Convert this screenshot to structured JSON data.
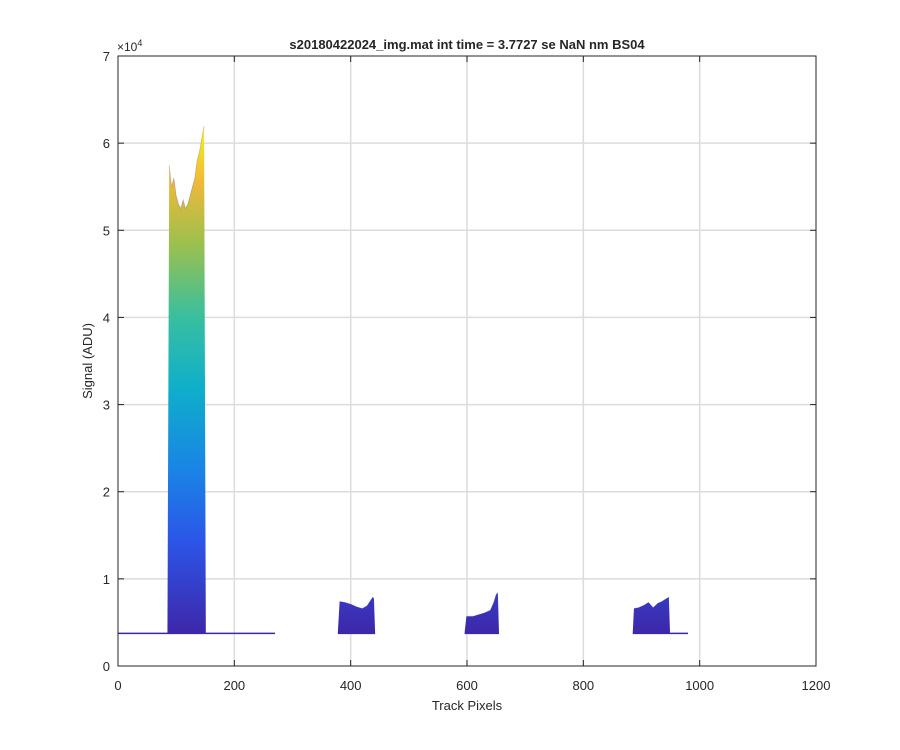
{
  "chart_data": {
    "type": "line",
    "title": "s20180422024_img.mat int time = 3.7727 se  NaN nm BS04",
    "xlabel": "Track Pixels",
    "ylabel": "Signal (ADU)",
    "xlim": [
      0,
      1200
    ],
    "ylim": [
      0,
      70000
    ],
    "y_exponent_label": "×10",
    "y_exponent_power": "4",
    "x_ticks": [
      0,
      200,
      400,
      600,
      800,
      1000,
      1200
    ],
    "y_ticks": [
      0,
      10000,
      20000,
      30000,
      40000,
      50000,
      60000,
      70000
    ],
    "x_tick_labels": [
      "0",
      "200",
      "400",
      "600",
      "800",
      "1000",
      "1200"
    ],
    "y_tick_labels": [
      "0",
      "1",
      "2",
      "3",
      "4",
      "5",
      "6",
      "7"
    ],
    "grid": true,
    "colormap": "parula",
    "baseline": 3750,
    "peaks": [
      {
        "x": [
          85,
          88,
          92,
          96,
          100,
          104,
          108,
          112,
          116,
          120,
          124,
          128,
          132,
          136,
          140,
          144,
          148,
          151
        ],
        "y": [
          3900,
          57500,
          55000,
          56000,
          54000,
          53000,
          52500,
          53500,
          52500,
          53000,
          54000,
          55000,
          56000,
          58000,
          59000,
          60500,
          62000,
          3900
        ]
      },
      {
        "x": [
          378,
          381,
          390,
          400,
          410,
          420,
          428,
          434,
          438,
          440,
          442
        ],
        "y": [
          3900,
          7400,
          7300,
          7100,
          6800,
          6600,
          6900,
          7500,
          7900,
          7700,
          3900
        ]
      },
      {
        "x": [
          596,
          599,
          610,
          620,
          630,
          640,
          646,
          650,
          653,
          655
        ],
        "y": [
          3900,
          5700,
          5700,
          5900,
          6100,
          6400,
          7300,
          8200,
          8400,
          3900
        ]
      },
      {
        "x": [
          885,
          887,
          895,
          905,
          912,
          920,
          928,
          935,
          942,
          947,
          949
        ],
        "y": [
          3900,
          6600,
          6700,
          7000,
          7300,
          6700,
          7200,
          7400,
          7700,
          7900,
          3900
        ]
      }
    ],
    "trace_extents": [
      [
        0,
        270
      ],
      [
        378,
        442
      ],
      [
        596,
        655
      ],
      [
        885,
        980
      ]
    ]
  }
}
